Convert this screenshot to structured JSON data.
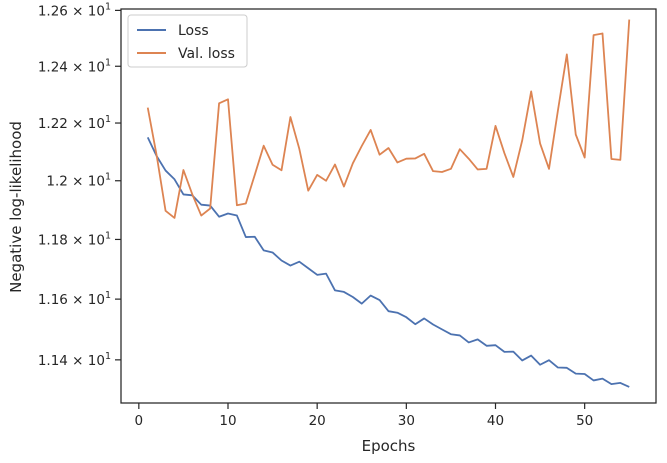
{
  "chart_data": {
    "type": "line",
    "title": "",
    "xlabel": "Epochs",
    "ylabel": "Negative log-likelihood",
    "y_scale": "log",
    "xlim": [
      -2,
      58
    ],
    "ylim": [
      11.26,
      12.605
    ],
    "x_ticks": [
      0,
      10,
      20,
      30,
      40,
      50
    ],
    "x_tick_labels": [
      "0",
      "10",
      "20",
      "30",
      "40",
      "50"
    ],
    "y_ticks": [
      11.4,
      11.6,
      11.8,
      12.0,
      12.2,
      12.4,
      12.6
    ],
    "y_tick_labels": [
      {
        "mantissa": "1.14",
        "base": "10",
        "exp": "1"
      },
      {
        "mantissa": "1.16",
        "base": "10",
        "exp": "1"
      },
      {
        "mantissa": "1.18",
        "base": "10",
        "exp": "1"
      },
      {
        "mantissa": "1.2",
        "base": "10",
        "exp": "1"
      },
      {
        "mantissa": "1.22",
        "base": "10",
        "exp": "1"
      },
      {
        "mantissa": "1.24",
        "base": "10",
        "exp": "1"
      },
      {
        "mantissa": "1.26",
        "base": "10",
        "exp": "1"
      }
    ],
    "grid": false,
    "legend_position": "top-left",
    "x": [
      1,
      2,
      3,
      4,
      5,
      6,
      7,
      8,
      9,
      10,
      11,
      12,
      13,
      14,
      15,
      16,
      17,
      18,
      19,
      20,
      21,
      22,
      23,
      24,
      25,
      26,
      27,
      28,
      29,
      30,
      31,
      32,
      33,
      34,
      35,
      36,
      37,
      38,
      39,
      40,
      41,
      42,
      43,
      44,
      45,
      46,
      47,
      48,
      49,
      50,
      51,
      52,
      53,
      54,
      55
    ],
    "series": [
      {
        "name": "Loss",
        "color": "#4c72b0",
        "values": [
          12.15,
          12.085,
          12.035,
          12.005,
          11.953,
          11.95,
          11.918,
          11.915,
          11.877,
          11.888,
          11.881,
          11.808,
          11.809,
          11.763,
          11.756,
          11.729,
          11.712,
          11.725,
          11.703,
          11.681,
          11.685,
          11.629,
          11.624,
          11.607,
          11.585,
          11.612,
          11.597,
          11.56,
          11.555,
          11.54,
          11.517,
          11.536,
          11.516,
          11.5,
          11.484,
          11.48,
          11.457,
          11.467,
          11.446,
          11.448,
          11.426,
          11.427,
          11.398,
          11.414,
          11.384,
          11.399,
          11.375,
          11.374,
          11.355,
          11.354,
          11.333,
          11.339,
          11.321,
          11.325,
          11.312
        ]
      },
      {
        "name": "Val. loss",
        "color": "#dd8452",
        "values": [
          12.254,
          12.087,
          11.897,
          11.873,
          12.037,
          11.953,
          11.881,
          11.905,
          12.269,
          12.283,
          11.916,
          11.922,
          12.02,
          12.121,
          12.055,
          12.036,
          12.221,
          12.11,
          11.966,
          12.02,
          12.0,
          12.056,
          11.98,
          12.06,
          12.12,
          12.176,
          12.09,
          12.113,
          12.063,
          12.076,
          12.077,
          12.093,
          12.033,
          12.03,
          12.041,
          12.109,
          12.076,
          12.039,
          12.041,
          12.19,
          12.095,
          12.013,
          12.14,
          12.311,
          12.129,
          12.041,
          12.244,
          12.442,
          12.16,
          12.08,
          12.511,
          12.517,
          12.075,
          12.072,
          12.567
        ]
      }
    ]
  }
}
